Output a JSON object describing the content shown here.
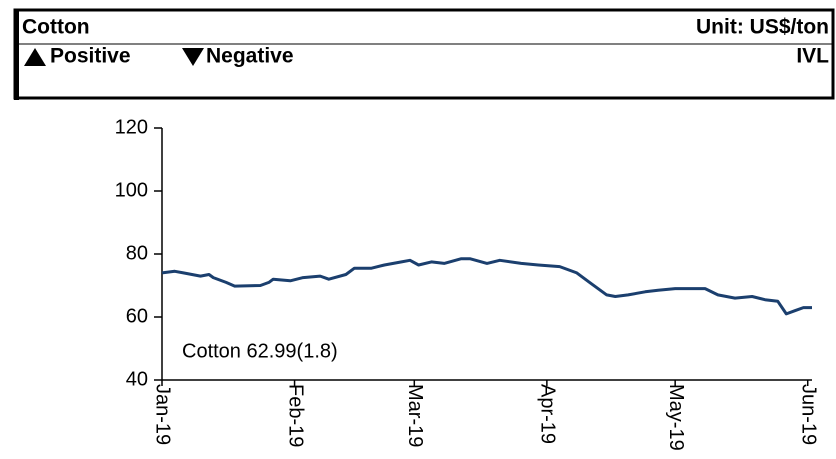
{
  "header": {
    "title": "Cotton",
    "unit": "Unit: US$/ton",
    "positive": "Positive",
    "negative": "Negative",
    "code": "IVL"
  },
  "chart_data": {
    "type": "line",
    "annotation": "Cotton 62.99(1.8)",
    "xlim": [
      0,
      152
    ],
    "ylim": [
      40,
      120
    ],
    "yticks": [
      40,
      60,
      80,
      100,
      120
    ],
    "xticks": [
      {
        "value": 0,
        "label": "Jan-19"
      },
      {
        "value": 31,
        "label": "Feb-19"
      },
      {
        "value": 59,
        "label": "Mar-19"
      },
      {
        "value": 90,
        "label": "Apr-19"
      },
      {
        "value": 120,
        "label": "May-19"
      },
      {
        "value": 151,
        "label": "Jun-19"
      }
    ],
    "x": [
      0,
      3,
      5,
      9,
      11,
      12,
      15,
      17,
      23,
      25,
      26,
      30,
      33,
      37,
      39,
      43,
      45,
      49,
      52,
      56,
      58,
      60,
      63,
      66,
      70,
      72,
      76,
      79,
      84,
      88,
      93,
      97,
      100,
      104,
      106,
      109,
      113,
      116,
      120,
      123,
      127,
      130,
      134,
      138,
      141,
      144,
      146,
      148,
      150,
      152
    ],
    "series": [
      {
        "name": "Cotton",
        "color": "#1b3f6e",
        "values": [
          74,
          74.5,
          74,
          73,
          73.5,
          72.5,
          71,
          69.8,
          70,
          71,
          72,
          71.5,
          72.5,
          73,
          72,
          73.5,
          75.5,
          75.5,
          76.5,
          77.5,
          78,
          76.5,
          77.5,
          77,
          78.5,
          78.5,
          77,
          78,
          77,
          76.5,
          76,
          74,
          71,
          67,
          66.5,
          67,
          68,
          68.5,
          69,
          69,
          69,
          67,
          66,
          66.5,
          65.5,
          65,
          61,
          62,
          63,
          62.99
        ]
      }
    ]
  }
}
